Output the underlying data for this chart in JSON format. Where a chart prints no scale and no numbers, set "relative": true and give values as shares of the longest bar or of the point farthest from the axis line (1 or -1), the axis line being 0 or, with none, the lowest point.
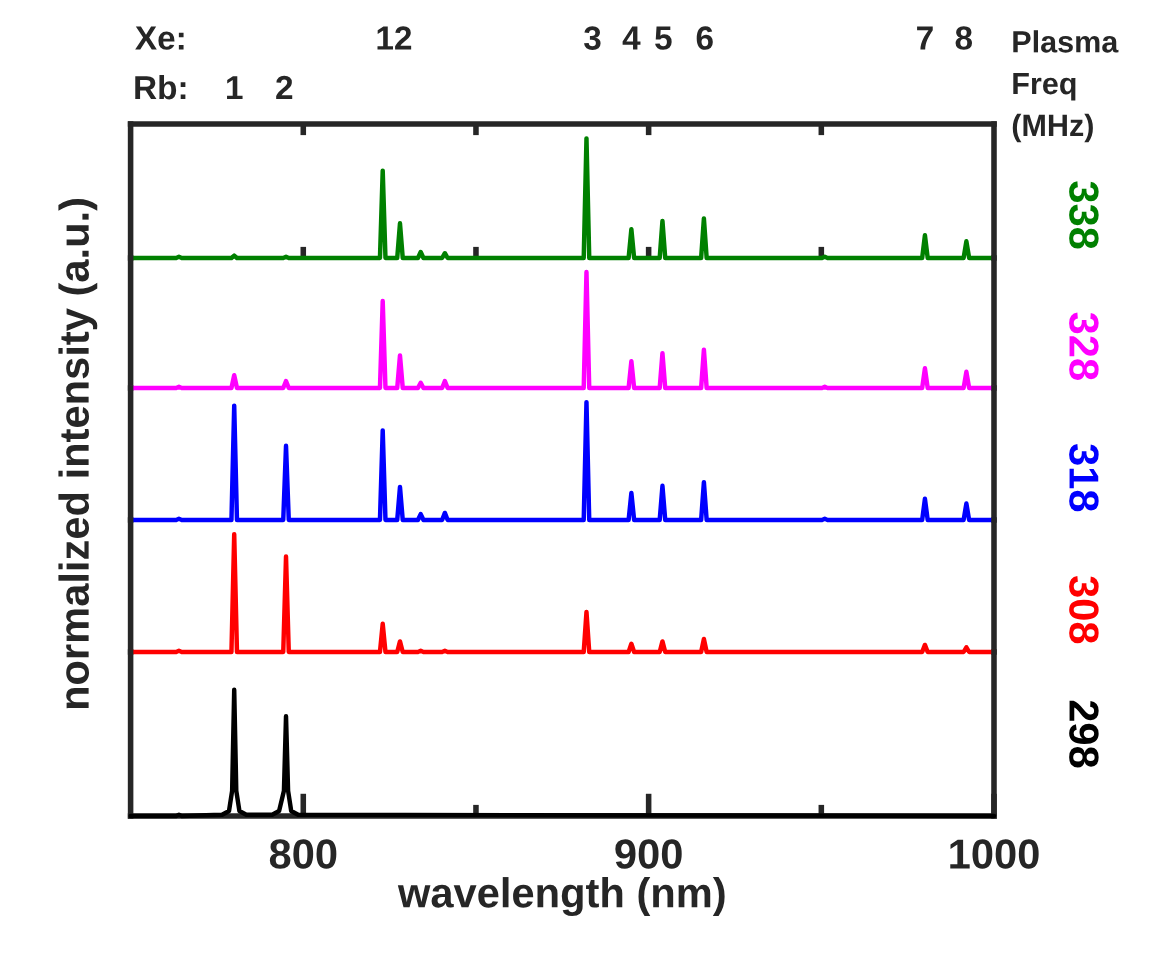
{
  "chart_data": [
    {
      "type": "line",
      "relative": true,
      "legend_title": "Plasma Freq (MHz)",
      "xlim": [
        750,
        1000
      ],
      "xticks": [
        {
          "value": 800,
          "label": null
        },
        {
          "value": 850,
          "label": null
        },
        {
          "value": 900,
          "label": null
        },
        {
          "value": 950,
          "label": null
        }
      ],
      "tick_labels": false,
      "annotations": [
        "Xe:",
        "12",
        "3",
        "4",
        "5",
        "6",
        "7",
        "8",
        "Rb:",
        "1",
        "2"
      ],
      "x": [
        750,
        763.2,
        764,
        764.8,
        779.2,
        780,
        780.8,
        794.2,
        795,
        795.8,
        822.2,
        823,
        823.8,
        827.2,
        828,
        828.8,
        833.2,
        834,
        834.8,
        840.2,
        841,
        841.8,
        881.2,
        882,
        882.8,
        894.2,
        895,
        895.8,
        903.2,
        904,
        904.8,
        915.2,
        916,
        916.8,
        950.2,
        951,
        951.8,
        979.2,
        980,
        980.8,
        991.2,
        992,
        992.8,
        1000
      ],
      "series": [
        {
          "name": "338",
          "color": "#008000",
          "values": [
            0,
            0,
            0.01,
            0,
            0,
            0.02,
            0,
            0,
            0.01,
            0,
            0,
            0.73,
            0,
            0,
            0.29,
            0,
            0,
            0.05,
            0,
            0,
            0.04,
            0,
            0,
            1,
            0,
            0,
            0.24,
            0,
            0,
            0.31,
            0,
            0,
            0.33,
            0,
            0,
            0.01,
            0,
            0,
            0.19,
            0,
            0,
            0.14,
            0,
            0
          ]
        }
      ]
    },
    {
      "type": "line",
      "relative": true,
      "xlim": [
        750,
        1000
      ],
      "tick_labels": false,
      "x": [
        750,
        763.2,
        764,
        764.8,
        779.2,
        780,
        780.8,
        794.2,
        795,
        795.8,
        822.2,
        823,
        823.8,
        827.2,
        828,
        828.8,
        833.2,
        834,
        834.8,
        840.2,
        841,
        841.8,
        881.2,
        882,
        882.8,
        894.2,
        895,
        895.8,
        903.2,
        904,
        904.8,
        915.2,
        916,
        916.8,
        950.2,
        951,
        951.8,
        979.2,
        980,
        980.8,
        991.2,
        992,
        992.8,
        1000
      ],
      "series": [
        {
          "name": "328",
          "color": "#ff00ff",
          "values": [
            0,
            0,
            0.01,
            0,
            0,
            0.11,
            0,
            0,
            0.06,
            0,
            0,
            0.75,
            0,
            0,
            0.28,
            0,
            0,
            0.045,
            0,
            0,
            0.06,
            0,
            0,
            1,
            0,
            0,
            0.23,
            0,
            0,
            0.3,
            0,
            0,
            0.33,
            0,
            0,
            0.01,
            0,
            0,
            0.17,
            0,
            0,
            0.14,
            0,
            0
          ]
        }
      ]
    },
    {
      "type": "line",
      "relative": true,
      "ylabel": "normalized intensity (a.u.)",
      "xlim": [
        750,
        1000
      ],
      "tick_labels": false,
      "x": [
        750,
        763.2,
        764,
        764.8,
        779.2,
        780,
        780.8,
        794.2,
        795,
        795.8,
        822.2,
        823,
        823.8,
        827.2,
        828,
        828.8,
        833.2,
        834,
        834.8,
        840.2,
        841,
        841.8,
        881.2,
        882,
        882.8,
        894.2,
        895,
        895.8,
        903.2,
        904,
        904.8,
        915.2,
        916,
        916.8,
        950.2,
        951,
        951.8,
        979.2,
        980,
        980.8,
        991.2,
        992,
        992.8,
        1000
      ],
      "series": [
        {
          "name": "318",
          "color": "#0000ff",
          "values": [
            0,
            0,
            0.01,
            0,
            0,
            0.97,
            0,
            0,
            0.63,
            0,
            0,
            0.76,
            0,
            0,
            0.28,
            0,
            0,
            0.05,
            0,
            0,
            0.06,
            0,
            0,
            1,
            0,
            0,
            0.23,
            0,
            0,
            0.29,
            0,
            0,
            0.32,
            0,
            0,
            0.01,
            0,
            0,
            0.18,
            0,
            0,
            0.14,
            0,
            0
          ]
        }
      ]
    },
    {
      "type": "line",
      "relative": true,
      "xlim": [
        750,
        1000
      ],
      "tick_labels": false,
      "x": [
        750,
        763.2,
        764,
        764.8,
        779.2,
        780,
        780.8,
        794.2,
        795,
        795.8,
        822.2,
        823,
        823.8,
        827.2,
        828,
        828.8,
        833.2,
        834,
        834.8,
        840.2,
        841,
        841.8,
        881.2,
        882,
        882.8,
        894.2,
        895,
        895.8,
        903.2,
        904,
        904.8,
        915.2,
        916,
        916.8,
        950.2,
        951,
        951.8,
        979.2,
        980,
        980.8,
        991.2,
        992,
        992.8,
        1000
      ],
      "series": [
        {
          "name": "308",
          "color": "#ff0000",
          "values": [
            0,
            0,
            0.01,
            0,
            0,
            1,
            0,
            0,
            0.81,
            0,
            0,
            0.24,
            0,
            0,
            0.09,
            0,
            0,
            0.01,
            0,
            0,
            0.01,
            0,
            0,
            0.34,
            0,
            0,
            0.07,
            0,
            0,
            0.09,
            0,
            0,
            0.11,
            0,
            0,
            0,
            0,
            0,
            0.06,
            0,
            0,
            0.04,
            0,
            0
          ]
        }
      ]
    },
    {
      "type": "line",
      "relative": true,
      "xlabel": "wavelength (nm)",
      "xlim": [
        750,
        1000
      ],
      "xticks": [
        800,
        {
          "value": 850,
          "label": null
        },
        900,
        {
          "value": 950,
          "label": null
        },
        1000
      ],
      "tick_labels": "x",
      "x": [
        750,
        763.2,
        764,
        764.8,
        776.5,
        778.5,
        779.4,
        780,
        780.6,
        781.5,
        783.5,
        791,
        793,
        794.4,
        795,
        795.6,
        796.5,
        798.5,
        1000
      ],
      "series": [
        {
          "name": "298",
          "color": "#000000",
          "values": [
            0,
            0,
            0.01,
            0,
            0.01,
            0.04,
            0.2,
            1,
            0.2,
            0.04,
            0.01,
            0.01,
            0.04,
            0.2,
            0.79,
            0.2,
            0.04,
            0.01,
            0
          ]
        }
      ]
    }
  ]
}
